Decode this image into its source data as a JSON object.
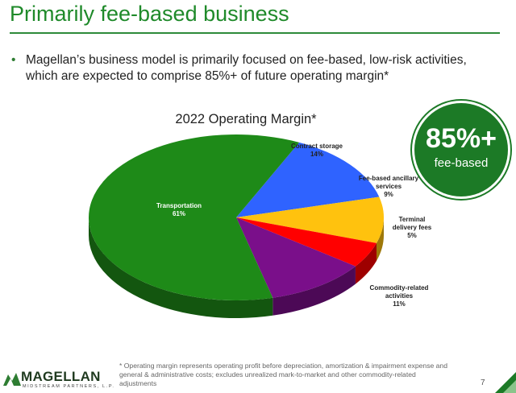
{
  "slide": {
    "title": "Primarily fee-based business",
    "bullet": "Magellan’s business model is primarily focused on fee-based, low-risk activities, which are expected to comprise 85%+ of future operating margin*",
    "badge_value": "85%+",
    "badge_label": "fee-based",
    "footnote": "* Operating margin represents operating profit before depreciation, amortization & impairment expense and general & administrative costs; excludes unrealized mark-to-market and other commodity-related adjustments",
    "page_number": "7",
    "logo_name": "MAGELLAN",
    "logo_subtitle": "MIDSTREAM PARTNERS, L.P."
  },
  "chart_data": {
    "type": "pie",
    "title": "2022 Operating Margin*",
    "slices": [
      {
        "label_lines": [
          "Contract storage"
        ],
        "value_text": "14%",
        "value": 14,
        "color": "#2f63ff"
      },
      {
        "label_lines": [
          "Fee-based ancillary",
          "services"
        ],
        "value_text": "9%",
        "value": 9,
        "color": "#ffc20e"
      },
      {
        "label_lines": [
          "Terminal",
          "delivery fees"
        ],
        "value_text": "5%",
        "value": 5,
        "color": "#ff0000"
      },
      {
        "label_lines": [
          "Commodity-related",
          "activities"
        ],
        "value_text": "11%",
        "value": 11,
        "color": "#7a0f8a"
      },
      {
        "label_lines": [
          "Transportation"
        ],
        "value_text": "61%",
        "value": 61,
        "color": "#1e8a18"
      }
    ]
  }
}
